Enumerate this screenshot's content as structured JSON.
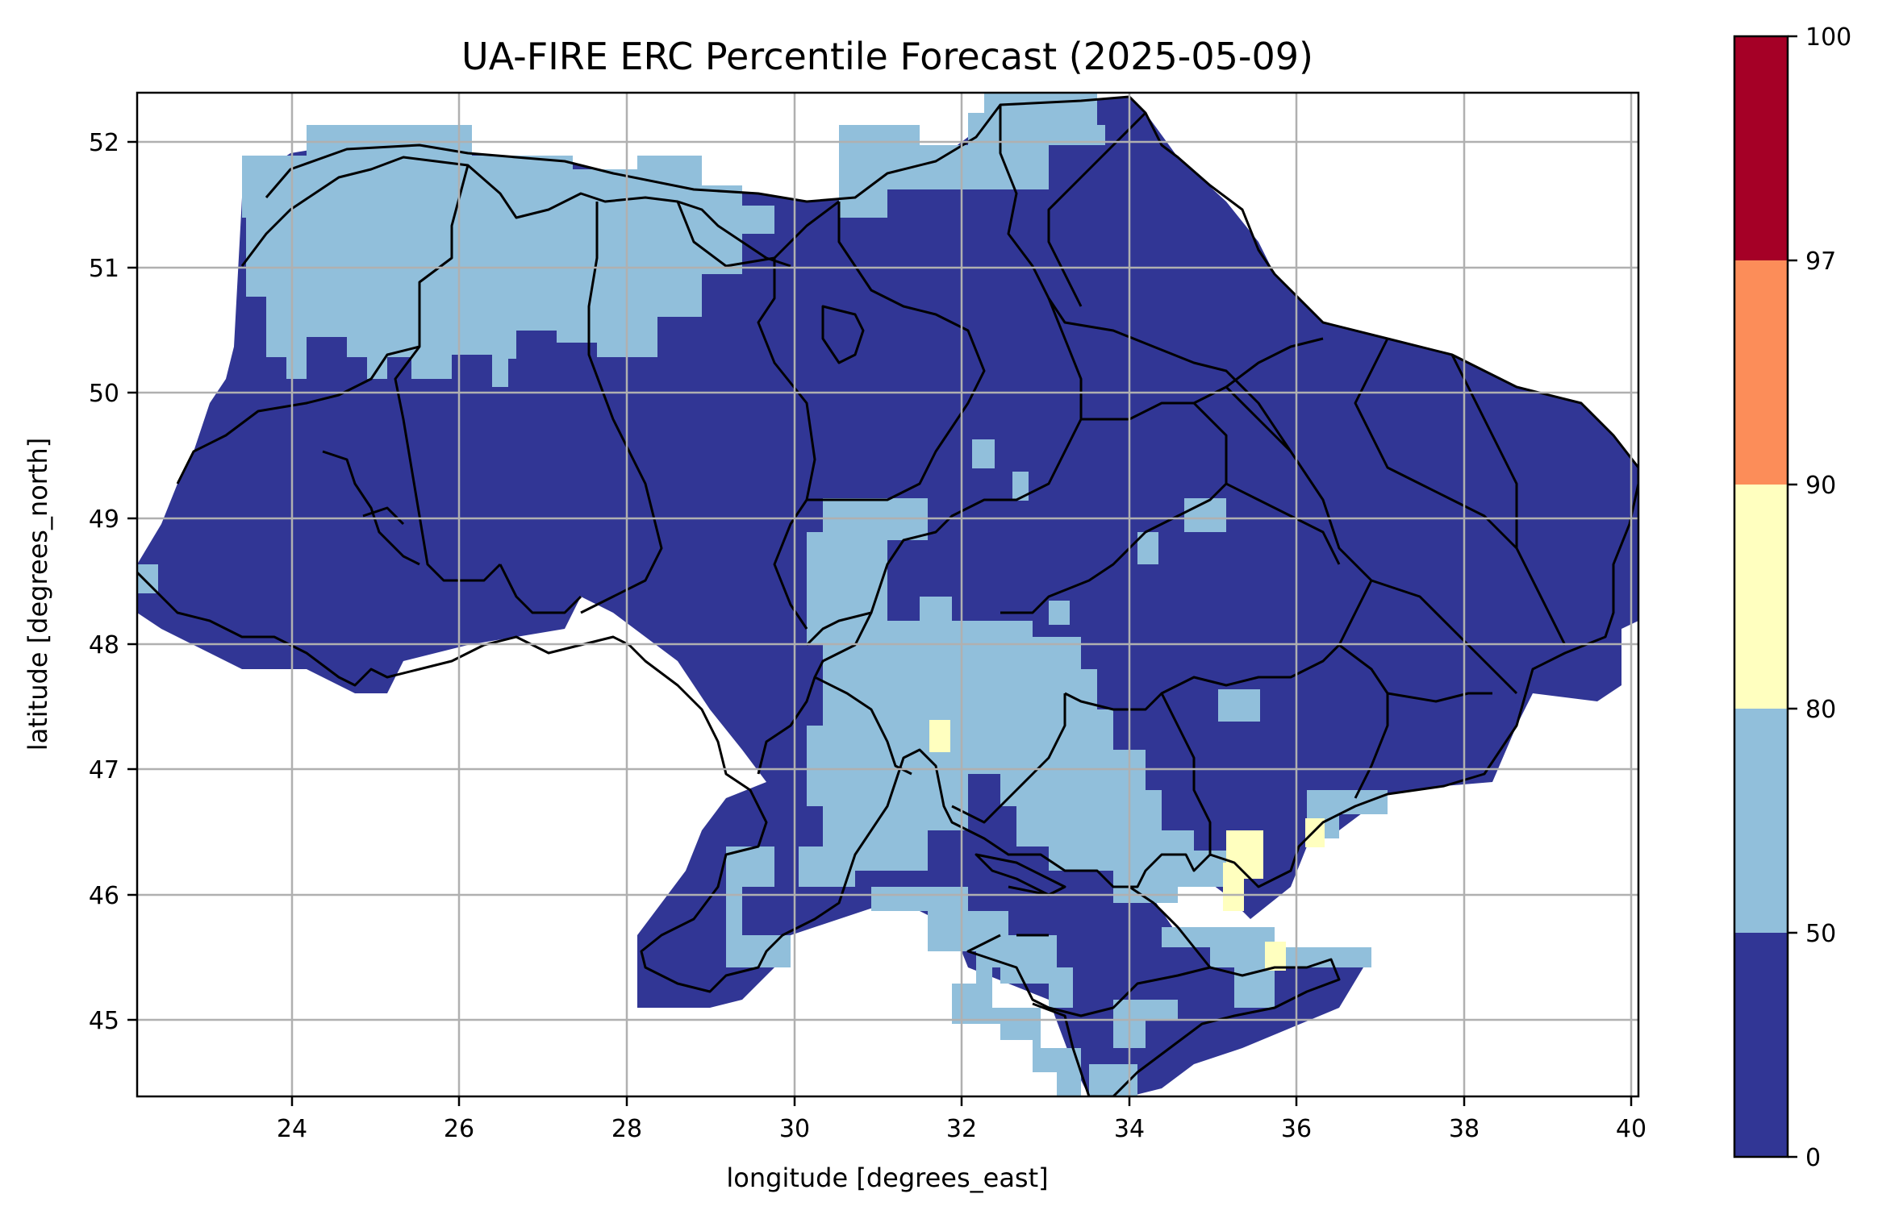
{
  "title": "UA-FIRE ERC Percentile Forecast (2025-05-09)",
  "xlabel": "longitude [degrees_east]",
  "ylabel": "latitude [degrees_north]",
  "x_ticks": [
    "24",
    "26",
    "28",
    "30",
    "32",
    "34",
    "36",
    "38",
    "40"
  ],
  "y_ticks": [
    "45",
    "46",
    "47",
    "48",
    "49",
    "50",
    "51",
    "52"
  ],
  "colorbar": {
    "ticks": [
      "0",
      "50",
      "80",
      "90",
      "97",
      "100"
    ],
    "bins": [
      {
        "range": [
          0,
          50
        ],
        "color": "#313695"
      },
      {
        "range": [
          50,
          80
        ],
        "color": "#91bfdb"
      },
      {
        "range": [
          80,
          90
        ],
        "color": "#ffffbf"
      },
      {
        "range": [
          90,
          97
        ],
        "color": "#fc8d59"
      },
      {
        "range": [
          97,
          100
        ],
        "color": "#a50026"
      }
    ]
  },
  "map": {
    "type": "gridded-raster",
    "lon_range": [
      22.1,
      40.15
    ],
    "lat_range": [
      44.35,
      52.4
    ],
    "dominant_class": "0-50",
    "regions_50_80": [
      "north-west Polissia",
      "north-central",
      "northern Chernihiv strip",
      "central-south Kirovohrad/Mykolaiv",
      "Kherson coast",
      "Crimea steppe",
      "Azov coast",
      "Odesa coast"
    ],
    "regions_80_90": [
      "near Mykolaiv (31.8E, 47.2N)",
      "Zaporizhzhia Azov coast (35.3E, 46.2N)",
      "near 36.3E 46.6N",
      "Kerch area (35.8E, 45.5N)"
    ],
    "regions_90_100": []
  }
}
